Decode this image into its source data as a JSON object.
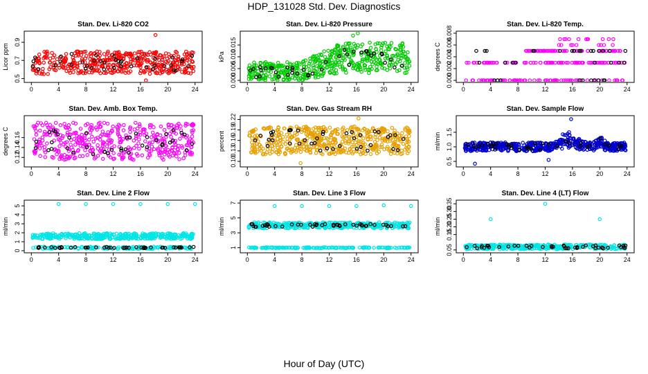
{
  "figure": {
    "title": "HDP_131028  Std. Dev. Diagnostics",
    "xlabel": "Hour of Day (UTC)"
  },
  "chart_data": [
    {
      "type": "scatter",
      "title": "Stan. Dev. Li-820 CO2",
      "ylabel": "Licor ppm",
      "xlim": [
        0,
        24
      ],
      "xticks": [
        0,
        4,
        8,
        12,
        16,
        20,
        24
      ],
      "ylim": [
        0.48,
        1.0
      ],
      "yticks": [
        0.5,
        0.7,
        0.9
      ],
      "color": "#ff0000",
      "series": [
        {
          "name": "dense",
          "pattern": "band",
          "low": 0.55,
          "high": 0.8,
          "count": 420,
          "seed": 11
        },
        {
          "name": "hourly",
          "color": "#000000",
          "pattern": "band",
          "low": 0.58,
          "high": 0.78,
          "count": 40,
          "seed": 12
        }
      ],
      "outliers": [
        {
          "x": 18.2,
          "y": 0.98
        },
        {
          "x": 16.8,
          "y": 0.48
        }
      ]
    },
    {
      "type": "scatter",
      "title": "Stan. Dev. Li-820 Pressure",
      "ylabel": "kPa",
      "xlim": [
        0,
        24
      ],
      "xticks": [
        0,
        4,
        8,
        12,
        16,
        20,
        24
      ],
      "ylim": [
        0,
        0.02
      ],
      "yticks": [
        0.0,
        0.005,
        0.01,
        0.015
      ],
      "color": "#00cc00",
      "series": [
        {
          "name": "dense",
          "pattern": "rising",
          "low": 0.0,
          "high": 0.008,
          "low2": 0.003,
          "high2": 0.016,
          "count": 500,
          "seed": 21
        },
        {
          "name": "hourly",
          "color": "#000000",
          "pattern": "rising",
          "low": 0.001,
          "high": 0.006,
          "low2": 0.005,
          "high2": 0.013,
          "count": 40,
          "seed": 22
        }
      ],
      "outliers": [
        {
          "x": 15.5,
          "y": 0.019
        },
        {
          "x": 16.2,
          "y": 0.02
        }
      ]
    },
    {
      "type": "scatter",
      "title": "Stan. Dev. Li-820 Temp.",
      "ylabel": "degrees C",
      "xlim": [
        0,
        24
      ],
      "xticks": [
        0,
        4,
        8,
        12,
        16,
        20,
        24
      ],
      "ylim": [
        0,
        0.008
      ],
      "yticks": [
        0.0,
        0.002,
        0.004,
        0.006,
        0.008
      ],
      "color": "#ff00ff",
      "series": [
        {
          "name": "level0",
          "pattern": "levels",
          "levels": [
            0.0
          ],
          "xfrom": 0.3,
          "xto": 23.8,
          "count": 80,
          "seed": 31
        },
        {
          "name": "level1",
          "pattern": "levels",
          "levels": [
            0.003
          ],
          "xfrom": 0.3,
          "xto": 23.8,
          "count": 90,
          "seed": 32
        },
        {
          "name": "level2",
          "pattern": "levels",
          "levels": [
            0.005
          ],
          "xfrom": 9,
          "xto": 23.8,
          "count": 70,
          "seed": 33
        },
        {
          "name": "level3",
          "pattern": "levels",
          "levels": [
            0.006,
            0.007
          ],
          "xfrom": 14,
          "xto": 22,
          "count": 20,
          "seed": 34
        },
        {
          "name": "hourly",
          "color": "#000000",
          "pattern": "levels",
          "levels": [
            0.0,
            0.003,
            0.005
          ],
          "xfrom": 0.3,
          "xto": 23.8,
          "count": 35,
          "seed": 35
        }
      ],
      "outliers": []
    },
    {
      "type": "scatter",
      "title": "Stan. Dev. Amb. Box Temp.",
      "ylabel": "degrees C",
      "xlim": [
        0,
        24
      ],
      "xticks": [
        0,
        4,
        8,
        12,
        16,
        20,
        24
      ],
      "ylim": [
        0.105,
        0.2
      ],
      "yticks": [
        0.12,
        0.14,
        0.16
      ],
      "color": "#ff00ff",
      "series": [
        {
          "name": "dense",
          "pattern": "band",
          "low": 0.115,
          "high": 0.19,
          "count": 420,
          "seed": 41
        },
        {
          "name": "hourly",
          "color": "#000000",
          "pattern": "band",
          "low": 0.125,
          "high": 0.175,
          "count": 40,
          "seed": 42
        }
      ],
      "outliers": []
    },
    {
      "type": "scatter",
      "title": "Stan. Dev. Gas Stream RH",
      "ylabel": "percent",
      "xlim": [
        0,
        24
      ],
      "xticks": [
        0,
        4,
        8,
        12,
        16,
        20,
        24
      ],
      "ylim": [
        0.09,
        0.225
      ],
      "yticks": [
        0.1,
        0.13,
        0.16,
        0.19,
        0.22
      ],
      "color": "#e8a000",
      "series": [
        {
          "name": "dense",
          "pattern": "band",
          "low": 0.12,
          "high": 0.2,
          "count": 520,
          "seed": 51
        },
        {
          "name": "hourly",
          "color": "#000000",
          "pattern": "band",
          "low": 0.13,
          "high": 0.19,
          "count": 40,
          "seed": 52
        }
      ],
      "outliers": [
        {
          "x": 16.3,
          "y": 0.223
        },
        {
          "x": 7.8,
          "y": 0.095
        }
      ]
    },
    {
      "type": "scatter",
      "title": "Stan. Dev. Sample Flow",
      "ylabel": "ml/min",
      "xlim": [
        0,
        24
      ],
      "xticks": [
        0,
        4,
        8,
        12,
        16,
        20,
        24
      ],
      "ylim": [
        0.38,
        2.0
      ],
      "yticks": [
        0.5,
        1.0,
        1.5
      ],
      "color": "#0000cc",
      "series": [
        {
          "name": "dense",
          "pattern": "flow",
          "low": 0.85,
          "high": 1.15,
          "count": 560,
          "seed": 61
        },
        {
          "name": "hourly",
          "color": "#000000",
          "pattern": "flow",
          "low": 0.88,
          "high": 1.12,
          "count": 40,
          "seed": 62
        }
      ],
      "outliers": [
        {
          "x": 15.8,
          "y": 1.95
        },
        {
          "x": 1.7,
          "y": 0.42
        },
        {
          "x": 12.5,
          "y": 0.55
        }
      ]
    },
    {
      "type": "scatter",
      "title": "Stan. Dev. Line 2 Flow",
      "ylabel": "ml/min",
      "xlim": [
        0,
        24
      ],
      "xticks": [
        0,
        4,
        8,
        12,
        16,
        20,
        24
      ],
      "ylim": [
        0,
        5.4
      ],
      "yticks": [
        0,
        1,
        2,
        3,
        4,
        5
      ],
      "color": "#00e5e5",
      "series": [
        {
          "name": "band-high",
          "pattern": "band",
          "low": 1.3,
          "high": 1.95,
          "count": 380,
          "seed": 71
        },
        {
          "name": "band-low",
          "pattern": "band",
          "low": 0.2,
          "high": 0.45,
          "count": 140,
          "seed": 72
        },
        {
          "name": "hourly",
          "color": "#000000",
          "pattern": "band",
          "low": 0.28,
          "high": 0.42,
          "count": 45,
          "seed": 73
        }
      ],
      "outliers": [
        {
          "x": 4,
          "y": 5.2
        },
        {
          "x": 8,
          "y": 5.2
        },
        {
          "x": 12,
          "y": 5.2
        },
        {
          "x": 16,
          "y": 5.2
        },
        {
          "x": 20,
          "y": 5.2
        },
        {
          "x": 24,
          "y": 5.2
        }
      ]
    },
    {
      "type": "scatter",
      "title": "Stan. Dev. Line 3 Flow",
      "ylabel": "ml/min",
      "xlim": [
        0,
        24
      ],
      "xticks": [
        0,
        4,
        8,
        12,
        16,
        20,
        24
      ],
      "ylim": [
        0.6,
        7.1
      ],
      "yticks": [
        1,
        3,
        5,
        7
      ],
      "color": "#00e5e5",
      "series": [
        {
          "name": "band-high",
          "pattern": "band",
          "low": 3.6,
          "high": 4.4,
          "count": 380,
          "seed": 81
        },
        {
          "name": "band-low",
          "pattern": "band",
          "low": 0.95,
          "high": 1.05,
          "count": 160,
          "seed": 82
        },
        {
          "name": "hourly",
          "color": "#000000",
          "pattern": "band",
          "low": 3.8,
          "high": 4.2,
          "count": 45,
          "seed": 83
        }
      ],
      "outliers": [
        {
          "x": 4,
          "y": 6.6
        },
        {
          "x": 8,
          "y": 6.6
        },
        {
          "x": 12,
          "y": 6.6
        },
        {
          "x": 16,
          "y": 6.6
        },
        {
          "x": 20,
          "y": 6.7
        },
        {
          "x": 24,
          "y": 6.6
        }
      ]
    },
    {
      "type": "scatter",
      "title": "Stan. Dev. Line 4 (LT) Flow",
      "ylabel": "ml/min",
      "xlim": [
        0,
        24
      ],
      "xticks": [
        0,
        4,
        8,
        12,
        16,
        20,
        24
      ],
      "ylim": [
        0.045,
        0.36
      ],
      "yticks": [
        0.05,
        0.15,
        0.2,
        0.25,
        0.3,
        0.35
      ],
      "color": "#00e5e5",
      "series": [
        {
          "name": "dense",
          "pattern": "band",
          "low": 0.055,
          "high": 0.085,
          "count": 320,
          "seed": 91
        },
        {
          "name": "hourly",
          "color": "#000000",
          "pattern": "band",
          "low": 0.06,
          "high": 0.08,
          "count": 45,
          "seed": 92
        }
      ],
      "outliers": [
        {
          "x": 12,
          "y": 0.35
        },
        {
          "x": 4,
          "y": 0.25
        },
        {
          "x": 20,
          "y": 0.25
        }
      ]
    }
  ]
}
